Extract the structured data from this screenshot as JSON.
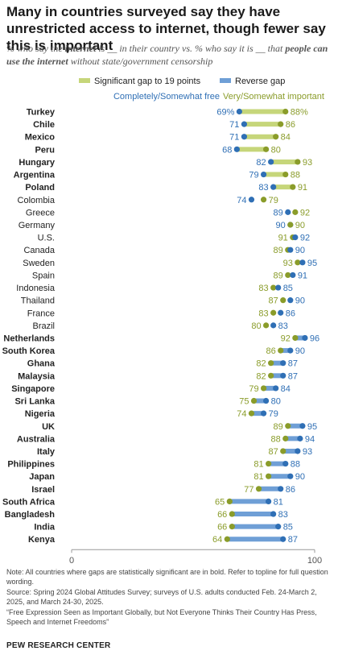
{
  "title": "Many in countries surveyed say they have unrestricted access to internet, though fewer say this is important",
  "subtitle_parts": {
    "p1": "% who say the ",
    "b1": "internet",
    "p2": " is __ in their country vs. % who say it is __ that ",
    "b2": "people can use the internet",
    "p3": " without state/government censorship"
  },
  "legend": {
    "gap_label": "Significant gap to 19 points",
    "reverse_label": "Reverse gap",
    "free_label": "Completely/Somewhat free",
    "important_label": "Very/Somewhat important"
  },
  "colors": {
    "free": "#2f6fb5",
    "important": "#8a9c2a",
    "gap_bar": "#c6d67a",
    "reverse_bar": "#6f9fd6",
    "axis": "#999999"
  },
  "chart_data": {
    "type": "dot",
    "xlim": [
      0,
      100
    ],
    "xticks": [
      "0",
      "100"
    ],
    "series_names": [
      "Completely/Somewhat free",
      "Very/Somewhat important"
    ],
    "rows": [
      {
        "country": "Turkey",
        "free": 69,
        "important": 88,
        "bold": true,
        "gap": "gap",
        "free_label": "69%",
        "important_label": "88%"
      },
      {
        "country": "Chile",
        "free": 71,
        "important": 86,
        "bold": true,
        "gap": "gap",
        "free_label": "71",
        "important_label": "86"
      },
      {
        "country": "Mexico",
        "free": 71,
        "important": 84,
        "bold": true,
        "gap": "gap",
        "free_label": "71",
        "important_label": "84"
      },
      {
        "country": "Peru",
        "free": 68,
        "important": 80,
        "bold": true,
        "gap": "gap",
        "free_label": "68",
        "important_label": "80"
      },
      {
        "country": "Hungary",
        "free": 82,
        "important": 93,
        "bold": true,
        "gap": "gap",
        "free_label": "82",
        "important_label": "93"
      },
      {
        "country": "Argentina",
        "free": 79,
        "important": 88,
        "bold": true,
        "gap": "gap",
        "free_label": "79",
        "important_label": "88"
      },
      {
        "country": "Poland",
        "free": 83,
        "important": 91,
        "bold": true,
        "gap": "gap",
        "free_label": "83",
        "important_label": "91"
      },
      {
        "country": "Colombia",
        "free": 74,
        "important": 79,
        "bold": false,
        "gap": "none",
        "free_label": "74",
        "important_label": "79"
      },
      {
        "country": "Greece",
        "free": 89,
        "important": 92,
        "bold": false,
        "gap": "none",
        "free_label": "89",
        "important_label": "92"
      },
      {
        "country": "Germany",
        "free": 90,
        "important": 90,
        "bold": false,
        "gap": "none",
        "free_label": "90",
        "important_label": "90"
      },
      {
        "country": "U.S.",
        "free": 92,
        "important": 91,
        "bold": false,
        "gap": "none",
        "free_label": "92",
        "important_label": "91"
      },
      {
        "country": "Canada",
        "free": 90,
        "important": 89,
        "bold": false,
        "gap": "none",
        "free_label": "90",
        "important_label": "89"
      },
      {
        "country": "Sweden",
        "free": 95,
        "important": 93,
        "bold": false,
        "gap": "none",
        "free_label": "95",
        "important_label": "93"
      },
      {
        "country": "Spain",
        "free": 91,
        "important": 89,
        "bold": false,
        "gap": "none",
        "free_label": "91",
        "important_label": "89"
      },
      {
        "country": "Indonesia",
        "free": 85,
        "important": 83,
        "bold": false,
        "gap": "none",
        "free_label": "85",
        "important_label": "83"
      },
      {
        "country": "Thailand",
        "free": 90,
        "important": 87,
        "bold": false,
        "gap": "none",
        "free_label": "90",
        "important_label": "87"
      },
      {
        "country": "France",
        "free": 86,
        "important": 83,
        "bold": false,
        "gap": "none",
        "free_label": "86",
        "important_label": "83"
      },
      {
        "country": "Brazil",
        "free": 83,
        "important": 80,
        "bold": false,
        "gap": "none",
        "free_label": "83",
        "important_label": "80"
      },
      {
        "country": "Netherlands",
        "free": 96,
        "important": 92,
        "bold": true,
        "gap": "reverse",
        "free_label": "96",
        "important_label": "92"
      },
      {
        "country": "South Korea",
        "free": 90,
        "important": 86,
        "bold": true,
        "gap": "reverse",
        "free_label": "90",
        "important_label": "86"
      },
      {
        "country": "Ghana",
        "free": 87,
        "important": 82,
        "bold": true,
        "gap": "reverse",
        "free_label": "87",
        "important_label": "82"
      },
      {
        "country": "Malaysia",
        "free": 87,
        "important": 82,
        "bold": true,
        "gap": "reverse",
        "free_label": "87",
        "important_label": "82"
      },
      {
        "country": "Singapore",
        "free": 84,
        "important": 79,
        "bold": true,
        "gap": "reverse",
        "free_label": "84",
        "important_label": "79"
      },
      {
        "country": "Sri Lanka",
        "free": 80,
        "important": 75,
        "bold": true,
        "gap": "reverse",
        "free_label": "80",
        "important_label": "75"
      },
      {
        "country": "Nigeria",
        "free": 79,
        "important": 74,
        "bold": true,
        "gap": "reverse",
        "free_label": "79",
        "important_label": "74"
      },
      {
        "country": "UK",
        "free": 95,
        "important": 89,
        "bold": true,
        "gap": "reverse",
        "free_label": "95",
        "important_label": "89"
      },
      {
        "country": "Australia",
        "free": 94,
        "important": 88,
        "bold": true,
        "gap": "reverse",
        "free_label": "94",
        "important_label": "88"
      },
      {
        "country": "Italy",
        "free": 93,
        "important": 87,
        "bold": true,
        "gap": "reverse",
        "free_label": "93",
        "important_label": "87"
      },
      {
        "country": "Philippines",
        "free": 88,
        "important": 81,
        "bold": true,
        "gap": "reverse",
        "free_label": "88",
        "important_label": "81"
      },
      {
        "country": "Japan",
        "free": 90,
        "important": 81,
        "bold": true,
        "gap": "reverse",
        "free_label": "90",
        "important_label": "81"
      },
      {
        "country": "Israel",
        "free": 86,
        "important": 77,
        "bold": true,
        "gap": "reverse",
        "free_label": "86",
        "important_label": "77"
      },
      {
        "country": "South Africa",
        "free": 81,
        "important": 65,
        "bold": true,
        "gap": "reverse",
        "free_label": "81",
        "important_label": "65"
      },
      {
        "country": "Bangladesh",
        "free": 83,
        "important": 66,
        "bold": true,
        "gap": "reverse",
        "free_label": "83",
        "important_label": "66"
      },
      {
        "country": "India",
        "free": 85,
        "important": 66,
        "bold": true,
        "gap": "reverse",
        "free_label": "85",
        "important_label": "66"
      },
      {
        "country": "Kenya",
        "free": 87,
        "important": 64,
        "bold": true,
        "gap": "reverse",
        "free_label": "87",
        "important_label": "64"
      }
    ]
  },
  "notes": {
    "note": "Note: All countries where gaps are statistically significant are in bold. Refer to topline for full question wording.",
    "source": "Source: Spring 2024 Global Attitudes Survey; surveys of U.S. adults conducted Feb. 24-March 2, 2025, and March 24-30, 2025.",
    "report": "“Free Expression Seen as Important Globally, but Not Everyone Thinks Their Country Has Press, Speech and Internet Freedoms”"
  },
  "brand": "PEW RESEARCH CENTER"
}
